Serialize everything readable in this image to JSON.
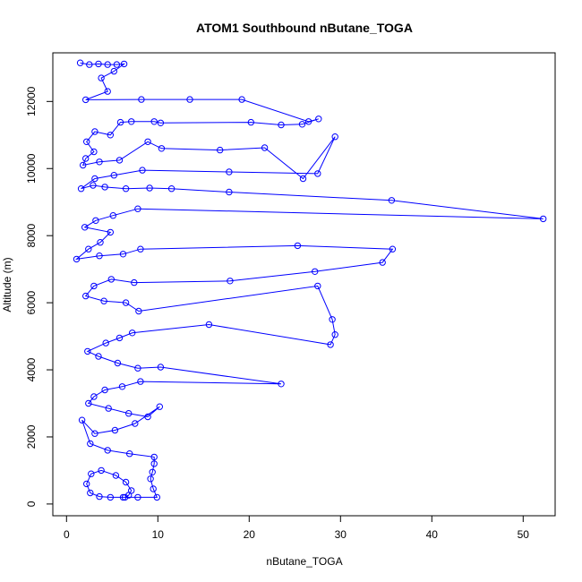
{
  "chart_data": {
    "type": "line",
    "title": "ATOM1 Southbound nButane_TOGA",
    "xlabel": "nButane_TOGA",
    "ylabel": "Altitude (m)",
    "xlim": [
      -1.5,
      53.5
    ],
    "ylim": [
      -350,
      13450
    ],
    "x_ticks": [
      0,
      10,
      20,
      30,
      40,
      50
    ],
    "y_ticks": [
      0,
      2000,
      4000,
      6000,
      8000,
      10000,
      12000
    ],
    "grid": false,
    "legend": "none",
    "series": [
      {
        "marker": "open-circle",
        "color": "#0000ff",
        "points": [
          [
            1.5,
            13150
          ],
          [
            2.5,
            13100
          ],
          [
            3.5,
            13120
          ],
          [
            4.5,
            13100
          ],
          [
            5.5,
            13100
          ],
          [
            6.3,
            13120
          ],
          [
            5.2,
            12900
          ],
          [
            3.8,
            12700
          ],
          [
            4.5,
            12300
          ],
          [
            2.1,
            12050
          ],
          [
            8.2,
            12060
          ],
          [
            13.5,
            12060
          ],
          [
            19.2,
            12060
          ],
          [
            26.5,
            11400
          ],
          [
            27.6,
            11480
          ],
          [
            25.8,
            11320
          ],
          [
            23.5,
            11300
          ],
          [
            20.2,
            11380
          ],
          [
            10.3,
            11360
          ],
          [
            9.6,
            11400
          ],
          [
            7.1,
            11400
          ],
          [
            5.9,
            11380
          ],
          [
            4.8,
            11000
          ],
          [
            3.1,
            11100
          ],
          [
            2.2,
            10800
          ],
          [
            3.0,
            10500
          ],
          [
            2.1,
            10300
          ],
          [
            1.8,
            10100
          ],
          [
            3.6,
            10200
          ],
          [
            5.8,
            10250
          ],
          [
            8.9,
            10800
          ],
          [
            10.4,
            10600
          ],
          [
            16.8,
            10550
          ],
          [
            21.7,
            10620
          ],
          [
            25.9,
            9700
          ],
          [
            29.4,
            10950
          ],
          [
            27.5,
            9850
          ],
          [
            17.8,
            9900
          ],
          [
            8.3,
            9950
          ],
          [
            5.2,
            9800
          ],
          [
            3.1,
            9700
          ],
          [
            1.6,
            9400
          ],
          [
            2.9,
            9500
          ],
          [
            4.2,
            9450
          ],
          [
            6.5,
            9400
          ],
          [
            9.1,
            9420
          ],
          [
            11.5,
            9400
          ],
          [
            17.8,
            9300
          ],
          [
            35.6,
            9050
          ],
          [
            52.2,
            8500
          ],
          [
            7.8,
            8800
          ],
          [
            5.1,
            8600
          ],
          [
            3.2,
            8450
          ],
          [
            2.0,
            8250
          ],
          [
            4.8,
            8100
          ],
          [
            3.7,
            7800
          ],
          [
            2.4,
            7600
          ],
          [
            1.1,
            7300
          ],
          [
            3.6,
            7400
          ],
          [
            6.2,
            7450
          ],
          [
            8.1,
            7600
          ],
          [
            25.3,
            7700
          ],
          [
            35.7,
            7600
          ],
          [
            34.6,
            7200
          ],
          [
            27.2,
            6930
          ],
          [
            17.9,
            6650
          ],
          [
            7.4,
            6600
          ],
          [
            4.9,
            6700
          ],
          [
            3.0,
            6500
          ],
          [
            2.1,
            6200
          ],
          [
            4.1,
            6050
          ],
          [
            6.5,
            6000
          ],
          [
            7.9,
            5750
          ],
          [
            27.5,
            6500
          ],
          [
            29.1,
            5500
          ],
          [
            29.4,
            5050
          ],
          [
            28.9,
            4750
          ],
          [
            15.6,
            5350
          ],
          [
            7.2,
            5100
          ],
          [
            5.8,
            4950
          ],
          [
            4.3,
            4800
          ],
          [
            2.3,
            4550
          ],
          [
            3.5,
            4400
          ],
          [
            5.6,
            4200
          ],
          [
            7.8,
            4050
          ],
          [
            10.3,
            4080
          ],
          [
            23.5,
            3580
          ],
          [
            8.1,
            3650
          ],
          [
            6.1,
            3500
          ],
          [
            4.2,
            3400
          ],
          [
            3.0,
            3200
          ],
          [
            2.4,
            3000
          ],
          [
            4.6,
            2850
          ],
          [
            6.8,
            2700
          ],
          [
            8.9,
            2600
          ],
          [
            10.2,
            2900
          ],
          [
            7.5,
            2400
          ],
          [
            5.3,
            2200
          ],
          [
            3.1,
            2100
          ],
          [
            1.7,
            2500
          ],
          [
            2.6,
            1800
          ],
          [
            4.5,
            1600
          ],
          [
            6.9,
            1500
          ],
          [
            9.6,
            1400
          ],
          [
            9.6,
            1200
          ],
          [
            9.4,
            950
          ],
          [
            9.2,
            750
          ],
          [
            9.5,
            450
          ],
          [
            9.9,
            200
          ],
          [
            7.8,
            200
          ],
          [
            6.2,
            200
          ],
          [
            4.8,
            200
          ],
          [
            3.6,
            220
          ],
          [
            2.6,
            330
          ],
          [
            2.2,
            600
          ],
          [
            2.7,
            900
          ],
          [
            3.8,
            1000
          ],
          [
            5.4,
            850
          ],
          [
            6.5,
            650
          ],
          [
            7.1,
            400
          ],
          [
            6.8,
            260
          ],
          [
            6.4,
            200
          ]
        ]
      }
    ]
  }
}
